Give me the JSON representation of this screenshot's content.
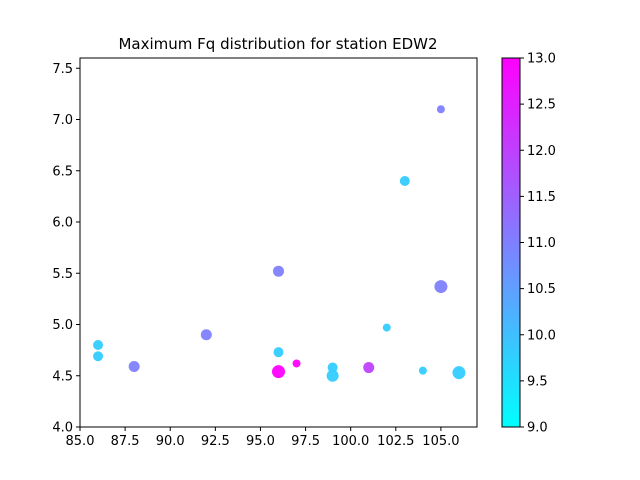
{
  "chart_data": {
    "type": "scatter",
    "title": "Maximum Fq distribution for station EDW2",
    "xlabel": "",
    "ylabel": "",
    "xlim": [
      85.0,
      107.0
    ],
    "ylim": [
      4.0,
      7.6
    ],
    "x_ticks": [
      "85.0",
      "87.5",
      "90.0",
      "92.5",
      "95.0",
      "97.5",
      "100.0",
      "102.5",
      "105.0"
    ],
    "y_ticks": [
      "4.0",
      "4.5",
      "5.0",
      "5.5",
      "6.0",
      "6.5",
      "7.0",
      "7.5"
    ],
    "grid": false,
    "colormap": "cool",
    "colorbar": {
      "range": [
        9.0,
        13.0
      ],
      "ticks": [
        "9.0",
        "9.5",
        "10.0",
        "10.5",
        "11.0",
        "11.5",
        "12.0",
        "12.5",
        "13.0"
      ],
      "color_low": "#00ffff",
      "color_high": "#ff00ff"
    },
    "points": [
      {
        "x": 86.0,
        "y": 4.8,
        "c": 9.8,
        "size": 5
      },
      {
        "x": 86.0,
        "y": 4.69,
        "c": 9.8,
        "size": 5
      },
      {
        "x": 88.0,
        "y": 4.59,
        "c": 11.0,
        "size": 5.5
      },
      {
        "x": 92.0,
        "y": 4.9,
        "c": 11.0,
        "size": 5.5
      },
      {
        "x": 96.0,
        "y": 5.52,
        "c": 11.0,
        "size": 5.5
      },
      {
        "x": 96.0,
        "y": 4.73,
        "c": 9.8,
        "size": 5
      },
      {
        "x": 96.0,
        "y": 4.54,
        "c": 13.0,
        "size": 6.5
      },
      {
        "x": 97.0,
        "y": 4.62,
        "c": 13.0,
        "size": 4
      },
      {
        "x": 99.0,
        "y": 4.58,
        "c": 9.8,
        "size": 5
      },
      {
        "x": 99.0,
        "y": 4.5,
        "c": 9.8,
        "size": 6
      },
      {
        "x": 101.0,
        "y": 4.58,
        "c": 12.0,
        "size": 5.5
      },
      {
        "x": 102.0,
        "y": 4.97,
        "c": 9.8,
        "size": 4
      },
      {
        "x": 103.0,
        "y": 6.4,
        "c": 9.8,
        "size": 5
      },
      {
        "x": 104.0,
        "y": 4.55,
        "c": 9.8,
        "size": 4
      },
      {
        "x": 105.0,
        "y": 7.1,
        "c": 11.0,
        "size": 4
      },
      {
        "x": 105.0,
        "y": 5.37,
        "c": 11.0,
        "size": 6.5
      },
      {
        "x": 106.0,
        "y": 4.53,
        "c": 9.8,
        "size": 6.5
      }
    ]
  }
}
